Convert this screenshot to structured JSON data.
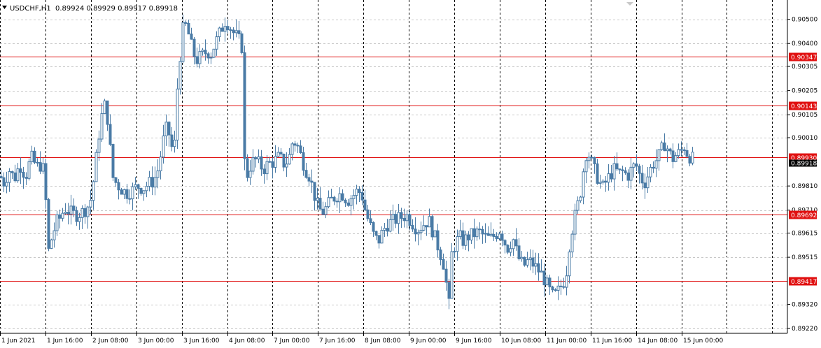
{
  "header": {
    "symbol": "USDCHF,H1",
    "ohlc": "0.89924 0.89929 0.89917 0.89918"
  },
  "chart_data": {
    "type": "candlestick",
    "symbol": "USDCHF",
    "timeframe": "H1",
    "ylim": [
      0.892,
      0.9058
    ],
    "y_ticks": [
      "0.90500",
      "0.90400",
      "0.90305",
      "0.90205",
      "0.90105",
      "0.90010",
      "0.89810",
      "0.89710",
      "0.89615",
      "0.89515",
      "0.89320",
      "0.89220"
    ],
    "x_ticks": [
      "1 Jun 2021",
      "1 Jun 16:00",
      "2 Jun 08:00",
      "3 Jun 00:00",
      "3 Jun 16:00",
      "4 Jun 08:00",
      "7 Jun 00:00",
      "7 Jun 16:00",
      "8 Jun 08:00",
      "9 Jun 00:00",
      "9 Jun 16:00",
      "10 Jun 08:00",
      "11 Jun 00:00",
      "11 Jun 16:00",
      "14 Jun 08:00",
      "15 Jun 00:00"
    ],
    "horizontal_lines": [
      {
        "price": "0.90347",
        "color": "#e01010"
      },
      {
        "price": "0.90143",
        "color": "#e01010"
      },
      {
        "price": "0.89930",
        "color": "#e01010"
      },
      {
        "price": "0.89692",
        "color": "#e01010"
      },
      {
        "price": "0.89417",
        "color": "#e01010"
      }
    ],
    "current_price": "0.89918",
    "grid": true,
    "candle_color": "#4a7ba6",
    "close_path": [
      [
        0,
        0.8985
      ],
      [
        6,
        0.8982
      ],
      [
        12,
        0.8988
      ],
      [
        20,
        0.8984
      ],
      [
        28,
        0.899
      ],
      [
        36,
        0.8985
      ],
      [
        44,
        0.8993
      ],
      [
        52,
        0.8989
      ],
      [
        60,
        0.899
      ],
      [
        64,
        0.8982
      ],
      [
        68,
        0.8953
      ],
      [
        72,
        0.8958
      ],
      [
        76,
        0.8962
      ],
      [
        80,
        0.8966
      ],
      [
        86,
        0.8968
      ],
      [
        92,
        0.8972
      ],
      [
        100,
        0.897
      ],
      [
        108,
        0.8969
      ],
      [
        116,
        0.897
      ],
      [
        124,
        0.8972
      ],
      [
        130,
        0.8976
      ],
      [
        136,
        0.899
      ],
      [
        142,
        0.9005
      ],
      [
        148,
        0.9015
      ],
      [
        152,
        0.9012
      ],
      [
        156,
        0.9
      ],
      [
        160,
        0.8985
      ],
      [
        166,
        0.8982
      ],
      [
        172,
        0.898
      ],
      [
        180,
        0.8978
      ],
      [
        188,
        0.8979
      ],
      [
        196,
        0.8981
      ],
      [
        204,
        0.898
      ],
      [
        212,
        0.8982
      ],
      [
        218,
        0.8983
      ],
      [
        224,
        0.8986
      ],
      [
        230,
        0.8995
      ],
      [
        236,
        0.9005
      ],
      [
        242,
        0.9002
      ],
      [
        248,
        0.8992
      ],
      [
        252,
        0.9018
      ],
      [
        256,
        0.9032
      ],
      [
        260,
        0.9045
      ],
      [
        264,
        0.9048
      ],
      [
        268,
        0.9045
      ],
      [
        272,
        0.904
      ],
      [
        276,
        0.9036
      ],
      [
        280,
        0.9033
      ],
      [
        284,
        0.9034
      ],
      [
        288,
        0.9035
      ],
      [
        292,
        0.9036
      ],
      [
        296,
        0.9037
      ],
      [
        300,
        0.9035
      ],
      [
        304,
        0.9038
      ],
      [
        310,
        0.9042
      ],
      [
        316,
        0.9046
      ],
      [
        322,
        0.905
      ],
      [
        328,
        0.9047
      ],
      [
        334,
        0.9044
      ],
      [
        340,
        0.9042
      ],
      [
        346,
        0.9038
      ],
      [
        348,
        0.8993
      ],
      [
        352,
        0.8985
      ],
      [
        358,
        0.899
      ],
      [
        364,
        0.8992
      ],
      [
        370,
        0.899
      ],
      [
        376,
        0.8988
      ],
      [
        382,
        0.899
      ],
      [
        390,
        0.8991
      ],
      [
        398,
        0.8993
      ],
      [
        406,
        0.899
      ],
      [
        412,
        0.8992
      ],
      [
        418,
        0.9
      ],
      [
        424,
        0.8998
      ],
      [
        430,
        0.8993
      ],
      [
        436,
        0.8988
      ],
      [
        442,
        0.8985
      ],
      [
        448,
        0.8978
      ],
      [
        454,
        0.8972
      ],
      [
        460,
        0.897
      ],
      [
        466,
        0.8972
      ],
      [
        472,
        0.8975
      ],
      [
        480,
        0.8977
      ],
      [
        488,
        0.8978
      ],
      [
        496,
        0.8975
      ],
      [
        504,
        0.8977
      ],
      [
        510,
        0.8979
      ],
      [
        516,
        0.8978
      ],
      [
        522,
        0.897
      ],
      [
        528,
        0.8965
      ],
      [
        534,
        0.896
      ],
      [
        540,
        0.8958
      ],
      [
        546,
        0.8962
      ],
      [
        552,
        0.8965
      ],
      [
        558,
        0.8966
      ],
      [
        564,
        0.8967
      ],
      [
        572,
        0.8968
      ],
      [
        580,
        0.8969
      ],
      [
        588,
        0.8966
      ],
      [
        596,
        0.8963
      ],
      [
        604,
        0.8965
      ],
      [
        612,
        0.8967
      ],
      [
        618,
        0.8962
      ],
      [
        624,
        0.8957
      ],
      [
        630,
        0.8952
      ],
      [
        636,
        0.8946
      ],
      [
        640,
        0.8925
      ],
      [
        644,
        0.8952
      ],
      [
        650,
        0.8957
      ],
      [
        656,
        0.896
      ],
      [
        662,
        0.8958
      ],
      [
        668,
        0.896
      ],
      [
        676,
        0.8961
      ],
      [
        684,
        0.8962
      ],
      [
        692,
        0.896
      ],
      [
        700,
        0.8959
      ],
      [
        708,
        0.8961
      ],
      [
        714,
        0.8963
      ],
      [
        720,
        0.8958
      ],
      [
        726,
        0.8955
      ],
      [
        732,
        0.896
      ],
      [
        736,
        0.8955
      ],
      [
        742,
        0.895
      ],
      [
        748,
        0.8948
      ],
      [
        754,
        0.895
      ],
      [
        760,
        0.8949
      ],
      [
        766,
        0.8947
      ],
      [
        772,
        0.8945
      ],
      [
        778,
        0.8942
      ],
      [
        784,
        0.8938
      ],
      [
        790,
        0.8935
      ],
      [
        796,
        0.8937
      ],
      [
        802,
        0.894
      ],
      [
        808,
        0.8943
      ],
      [
        812,
        0.8955
      ],
      [
        818,
        0.8965
      ],
      [
        824,
        0.8972
      ],
      [
        830,
        0.898
      ],
      [
        834,
        0.899
      ],
      [
        838,
        0.8996
      ],
      [
        842,
        0.8993
      ],
      [
        848,
        0.8988
      ],
      [
        854,
        0.8984
      ],
      [
        860,
        0.898
      ],
      [
        866,
        0.8983
      ],
      [
        872,
        0.8986
      ],
      [
        878,
        0.8988
      ],
      [
        884,
        0.8986
      ],
      [
        890,
        0.8987
      ],
      [
        896,
        0.8985
      ],
      [
        902,
        0.8988
      ],
      [
        908,
        0.899
      ],
      [
        914,
        0.8985
      ],
      [
        920,
        0.8982
      ],
      [
        926,
        0.8986
      ],
      [
        932,
        0.899
      ],
      [
        938,
        0.8992
      ],
      [
        944,
        0.8995
      ],
      [
        948,
        0.8999
      ],
      [
        954,
        0.8996
      ],
      [
        960,
        0.8992
      ],
      [
        966,
        0.8994
      ],
      [
        972,
        0.8995
      ],
      [
        976,
        0.8998
      ],
      [
        980,
        0.8995
      ],
      [
        986,
        0.8993
      ],
      [
        990,
        0.8992
      ]
    ]
  }
}
